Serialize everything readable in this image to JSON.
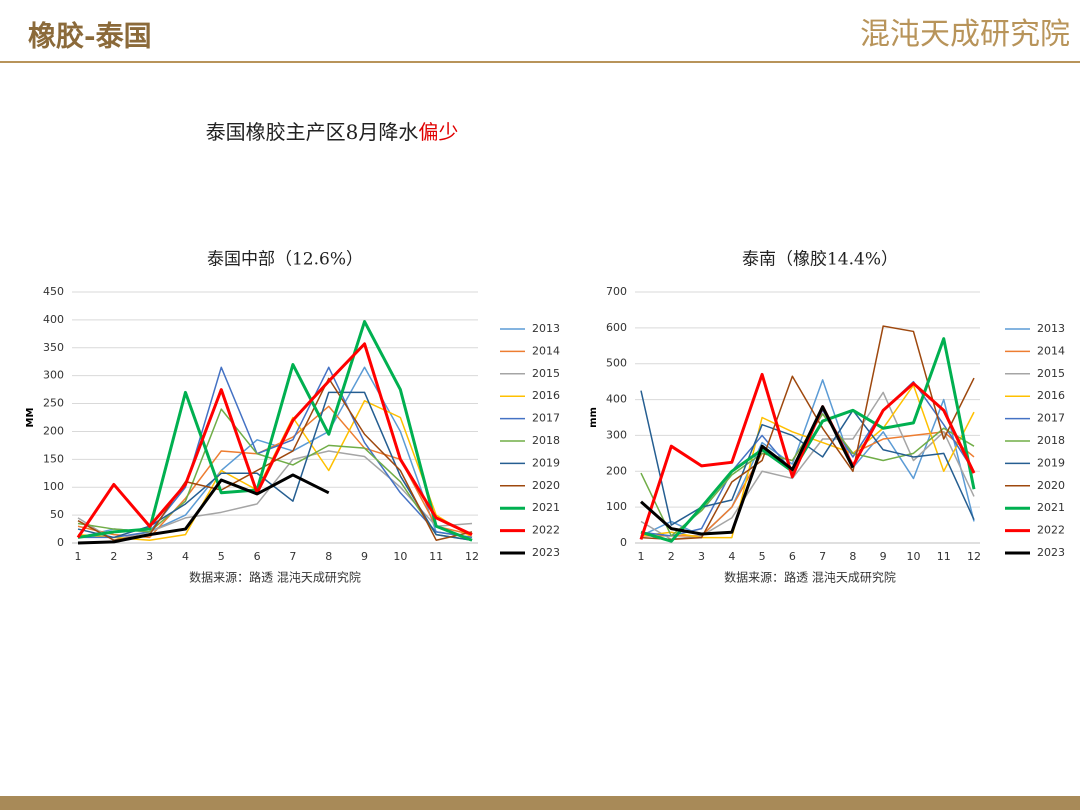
{
  "header": {
    "title": "橡胶-泰国",
    "logo": "混沌天成研究院"
  },
  "headline": {
    "text": "泰国橡胶主产区8月降水",
    "highlight": "偏少"
  },
  "chart_data": [
    {
      "type": "line",
      "title": "泰国中部（12.6%）",
      "y_label": "MM",
      "source": "数据来源：路透 混沌天成研究院",
      "categories": [
        1,
        2,
        3,
        4,
        5,
        6,
        7,
        8,
        9,
        10,
        11,
        12
      ],
      "ylim": [
        0,
        450
      ],
      "yticks": [
        0,
        50,
        100,
        150,
        200,
        250,
        300,
        350,
        400,
        450
      ],
      "grid": true,
      "series": [
        {
          "name": "2013",
          "color": "#5b9bd5",
          "linewidth": 1.5,
          "values": [
            10,
            25,
            20,
            50,
            130,
            185,
            165,
            200,
            315,
            200,
            20,
            10
          ]
        },
        {
          "name": "2014",
          "color": "#ed7d31",
          "linewidth": 1.5,
          "values": [
            30,
            15,
            10,
            80,
            165,
            160,
            190,
            245,
            170,
            150,
            30,
            15
          ]
        },
        {
          "name": "2015",
          "color": "#a5a5a5",
          "linewidth": 1.5,
          "values": [
            45,
            5,
            20,
            45,
            55,
            70,
            150,
            165,
            155,
            100,
            30,
            35
          ]
        },
        {
          "name": "2016",
          "color": "#ffc000",
          "linewidth": 1.5,
          "values": [
            15,
            10,
            5,
            15,
            130,
            95,
            225,
            130,
            255,
            225,
            50,
            10
          ]
        },
        {
          "name": "2017",
          "color": "#4472c4",
          "linewidth": 1.5,
          "values": [
            10,
            10,
            20,
            100,
            315,
            160,
            185,
            315,
            180,
            90,
            20,
            10
          ]
        },
        {
          "name": "2018",
          "color": "#70ad47",
          "linewidth": 1.5,
          "values": [
            35,
            25,
            20,
            75,
            240,
            160,
            140,
            175,
            170,
            110,
            15,
            5
          ]
        },
        {
          "name": "2019",
          "color": "#255e91",
          "linewidth": 1.5,
          "values": [
            25,
            10,
            30,
            70,
            125,
            125,
            75,
            270,
            270,
            120,
            15,
            5
          ]
        },
        {
          "name": "2020",
          "color": "#9e480e",
          "linewidth": 1.5,
          "values": [
            40,
            5,
            15,
            110,
            95,
            130,
            165,
            295,
            195,
            130,
            5,
            20
          ]
        },
        {
          "name": "2021",
          "color": "#00b050",
          "linewidth": 3,
          "values": [
            10,
            20,
            25,
            270,
            90,
            95,
            320,
            195,
            397,
            275,
            30,
            5
          ]
        },
        {
          "name": "2022",
          "color": "#ff0000",
          "linewidth": 3,
          "values": [
            10,
            105,
            30,
            105,
            275,
            90,
            220,
            290,
            357,
            150,
            45,
            15
          ]
        },
        {
          "name": "2023",
          "color": "#000000",
          "linewidth": 3,
          "values": [
            0,
            2,
            15,
            25,
            113,
            88,
            122,
            90,
            null,
            null,
            null,
            null
          ]
        }
      ]
    },
    {
      "type": "line",
      "title": "泰南（橡胶14.4%）",
      "y_label": "mm",
      "source": "数据来源：路透 混沌天成研究院",
      "categories": [
        1,
        2,
        3,
        4,
        5,
        6,
        7,
        8,
        9,
        10,
        11,
        12
      ],
      "ylim": [
        0,
        700
      ],
      "yticks": [
        0,
        100,
        200,
        300,
        400,
        500,
        600,
        700
      ],
      "grid": true,
      "series": [
        {
          "name": "2013",
          "color": "#5b9bd5",
          "linewidth": 1.5,
          "values": [
            20,
            60,
            20,
            100,
            280,
            220,
            455,
            210,
            310,
            180,
            400,
            60
          ]
        },
        {
          "name": "2014",
          "color": "#ed7d31",
          "linewidth": 1.5,
          "values": [
            20,
            20,
            20,
            100,
            250,
            230,
            360,
            250,
            290,
            300,
            310,
            240
          ]
        },
        {
          "name": "2015",
          "color": "#a5a5a5",
          "linewidth": 1.5,
          "values": [
            60,
            10,
            20,
            70,
            200,
            180,
            290,
            290,
            420,
            230,
            310,
            130
          ]
        },
        {
          "name": "2016",
          "color": "#ffc000",
          "linewidth": 1.5,
          "values": [
            20,
            30,
            15,
            15,
            350,
            310,
            280,
            250,
            320,
            440,
            200,
            365
          ]
        },
        {
          "name": "2017",
          "color": "#4472c4",
          "linewidth": 1.5,
          "values": [
            30,
            20,
            40,
            200,
            300,
            200,
            370,
            240,
            370,
            450,
            330,
            200
          ]
        },
        {
          "name": "2018",
          "color": "#70ad47",
          "linewidth": 1.5,
          "values": [
            195,
            20,
            90,
            190,
            250,
            230,
            360,
            250,
            230,
            250,
            320,
            270
          ]
        },
        {
          "name": "2019",
          "color": "#255e91",
          "linewidth": 1.5,
          "values": [
            425,
            50,
            100,
            120,
            330,
            300,
            240,
            370,
            260,
            240,
            250,
            65
          ]
        },
        {
          "name": "2020",
          "color": "#9e480e",
          "linewidth": 1.5,
          "values": [
            15,
            10,
            15,
            170,
            230,
            465,
            320,
            200,
            605,
            590,
            290,
            460
          ]
        },
        {
          "name": "2021",
          "color": "#00b050",
          "linewidth": 3,
          "values": [
            30,
            5,
            100,
            200,
            260,
            200,
            340,
            370,
            320,
            335,
            570,
            150
          ]
        },
        {
          "name": "2022",
          "color": "#ff0000",
          "linewidth": 3,
          "values": [
            10,
            270,
            215,
            225,
            470,
            185,
            380,
            215,
            370,
            445,
            370,
            195
          ]
        },
        {
          "name": "2023",
          "color": "#000000",
          "linewidth": 3,
          "values": [
            115,
            40,
            25,
            30,
            270,
            205,
            380,
            210,
            null,
            null,
            null,
            null
          ]
        }
      ]
    }
  ]
}
